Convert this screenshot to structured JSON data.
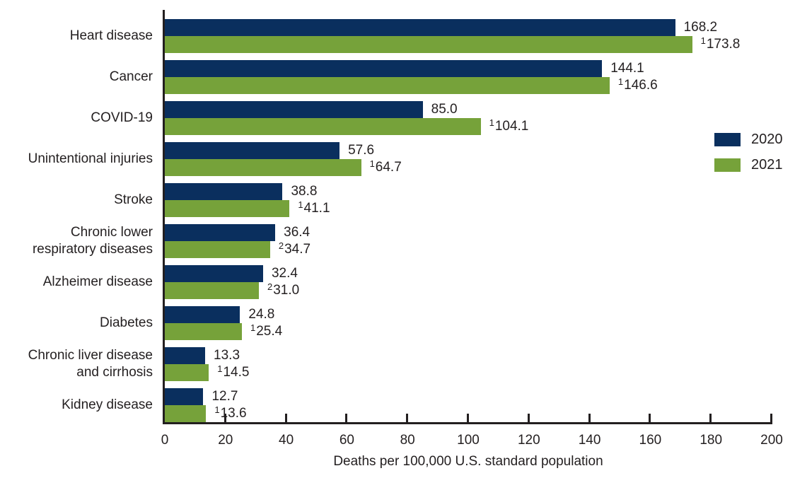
{
  "chart_data": {
    "type": "bar",
    "orientation": "horizontal",
    "xlabel": "Deaths per 100,000 U.S. standard population",
    "xlim": [
      0,
      200
    ],
    "xticks": [
      0,
      20,
      40,
      60,
      80,
      100,
      120,
      140,
      160,
      180,
      200
    ],
    "grid": false,
    "legend_position": "right",
    "categories": [
      "Heart disease",
      "Cancer",
      "COVID-19",
      "Unintentional injuries",
      "Stroke",
      "Chronic lower\nrespiratory diseases",
      "Alzheimer disease",
      "Diabetes",
      "Chronic liver disease\nand cirrhosis",
      "Kidney disease"
    ],
    "series": [
      {
        "name": "2020",
        "color": "#0a2f5e",
        "values": [
          168.2,
          144.1,
          85.0,
          57.6,
          38.8,
          36.4,
          32.4,
          24.8,
          13.3,
          12.7
        ],
        "value_labels": [
          "168.2",
          "144.1",
          "85.0",
          "57.6",
          "38.8",
          "36.4",
          "32.4",
          "24.8",
          "13.3",
          "12.7"
        ],
        "footnote_markers": [
          "",
          "",
          "",
          "",
          "",
          "",
          "",
          "",
          "",
          ""
        ]
      },
      {
        "name": "2021",
        "color": "#76a23a",
        "values": [
          173.8,
          146.6,
          104.1,
          64.7,
          41.1,
          34.7,
          31.0,
          25.4,
          14.5,
          13.6
        ],
        "value_labels": [
          "173.8",
          "146.6",
          "104.1",
          "64.7",
          "41.1",
          "34.7",
          "31.0",
          "25.4",
          "14.5",
          "13.6"
        ],
        "footnote_markers": [
          "1",
          "1",
          "1",
          "1",
          "1",
          "2",
          "2",
          "1",
          "1",
          "1"
        ]
      }
    ]
  }
}
